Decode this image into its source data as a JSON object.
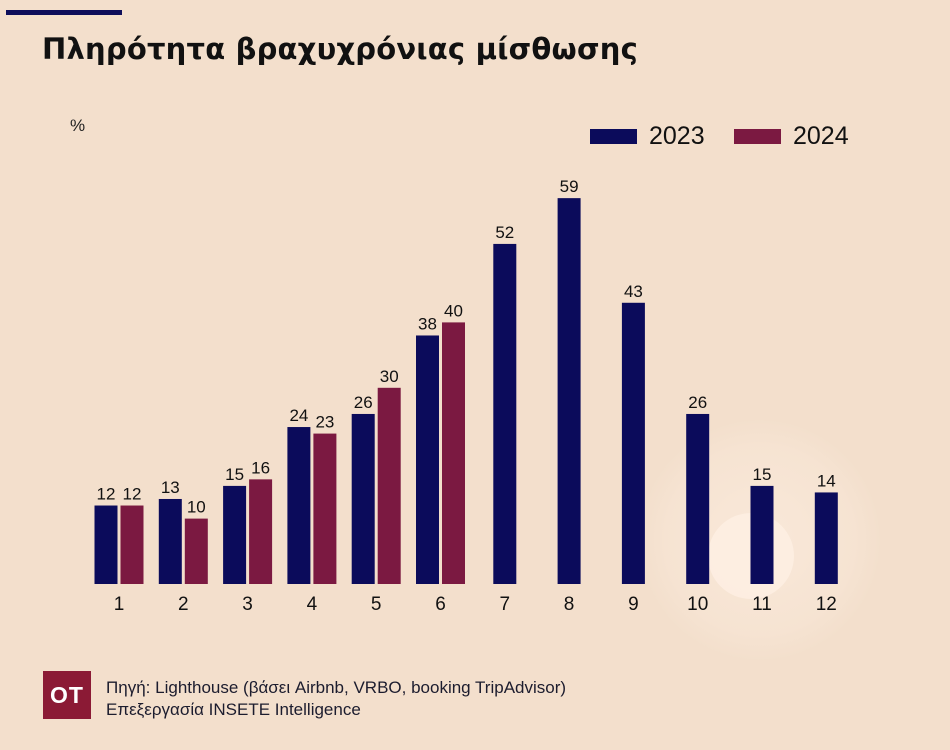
{
  "title": "Πληρότητα βραχυχρόνιας μίσθωσης",
  "unit_label": "%",
  "colors": {
    "series_2023": "#0b0b5b",
    "series_2024": "#7b1941",
    "background": "#f3dfcc"
  },
  "chart_data": {
    "type": "bar",
    "categories": [
      "1",
      "2",
      "3",
      "4",
      "5",
      "6",
      "7",
      "8",
      "9",
      "10",
      "11",
      "12"
    ],
    "series": [
      {
        "name": "2023",
        "values": [
          12,
          13,
          15,
          24,
          26,
          38,
          52,
          59,
          43,
          26,
          15,
          14
        ]
      },
      {
        "name": "2024",
        "values": [
          12,
          10,
          16,
          23,
          30,
          40,
          null,
          null,
          null,
          null,
          null,
          null
        ]
      }
    ],
    "ylabel": "%",
    "ylim": [
      0,
      60
    ],
    "grid": false,
    "legend_position": "top-right"
  },
  "footer": {
    "logo_text": "OT",
    "source_line1": "Πηγή: Lighthouse (βάσει Airbnb, VRBO, booking TripAdvisor)",
    "source_line2": "Επεξεργασία INSETE Intelligence"
  }
}
